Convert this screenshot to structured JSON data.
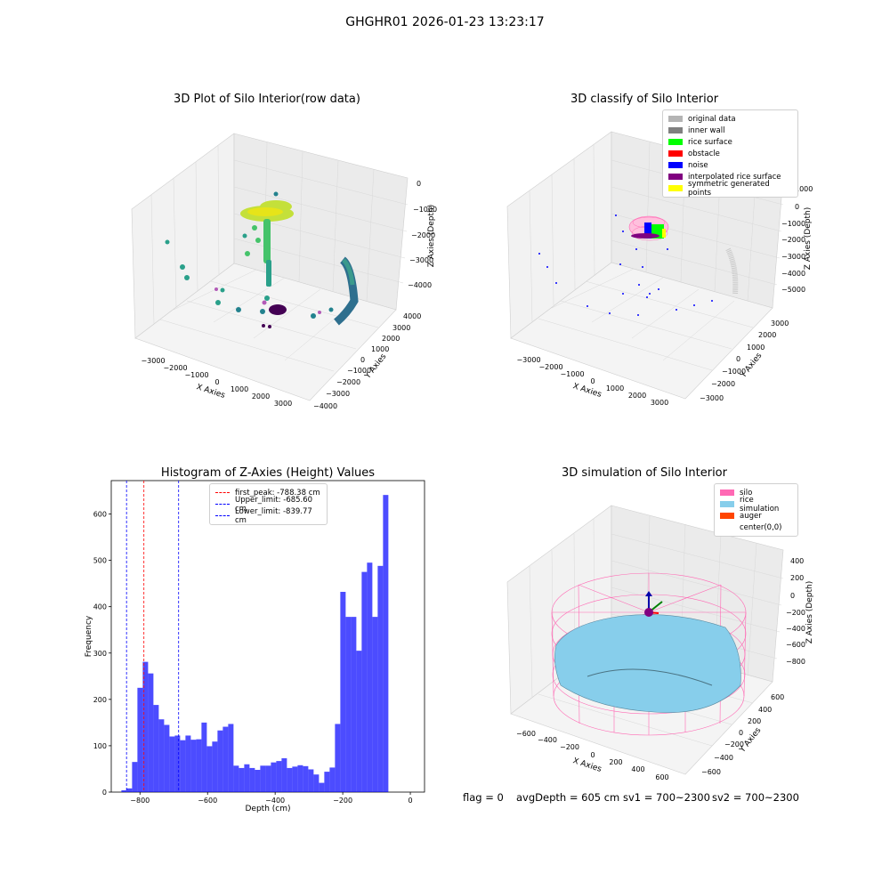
{
  "header": {
    "title": "GHGHR01 2026-01-23 13:23:17"
  },
  "plots": {
    "raw": {
      "title": "3D Plot of Silo Interior(row data)",
      "xlabel": "X Axies",
      "ylabel": "Y Axies",
      "zlabel": "Z Axies (Depth)",
      "xticks": [
        "−3000",
        "−2000",
        "−1000",
        "0",
        "1000",
        "2000",
        "3000"
      ],
      "yticks": [
        "4000",
        "3000",
        "2000",
        "1000",
        "0",
        "−1000",
        "−2000",
        "−3000",
        "−4000"
      ],
      "zticks": [
        "0",
        "−1000",
        "−2000",
        "−3000",
        "−4000"
      ]
    },
    "classify": {
      "title": "3D classify of Silo Interior",
      "xlabel": "X Axies",
      "ylabel": "Y Axies",
      "zlabel": "Z Axies (Depth)",
      "xticks": [
        "−3000",
        "−2000",
        "−1000",
        "0",
        "1000",
        "2000",
        "3000"
      ],
      "yticks": [
        "3000",
        "2000",
        "1000",
        "0",
        "−1000",
        "−2000",
        "−3000"
      ],
      "zticks": [
        "1000",
        "0",
        "−1000",
        "−2000",
        "−3000",
        "−4000",
        "−5000"
      ],
      "legend": [
        {
          "label": "original data",
          "color": "#b4b4b4"
        },
        {
          "label": "inner wall",
          "color": "#808080"
        },
        {
          "label": "rice surface",
          "color": "#00ff00"
        },
        {
          "label": "obstacle",
          "color": "#ff0000"
        },
        {
          "label": "noise",
          "color": "#0000ff"
        },
        {
          "label": "interpolated rice surface",
          "color": "#800080"
        },
        {
          "label": "symmetric generated points",
          "color": "#ffff00"
        }
      ]
    },
    "simulation": {
      "title": "3D simulation of Silo Interior",
      "xlabel": "X Axies",
      "ylabel": "Y Axies",
      "zlabel": "Z Axies (Depth)",
      "xticks": [
        "−600",
        "−400",
        "−200",
        "0",
        "200",
        "400",
        "600"
      ],
      "yticks": [
        "600",
        "400",
        "200",
        "0",
        "−200",
        "−400",
        "−600"
      ],
      "zticks": [
        "400",
        "200",
        "0",
        "−200",
        "−400",
        "−600",
        "−800"
      ],
      "legend": [
        {
          "label": "silo",
          "color": "#ff69b4"
        },
        {
          "label": "rice simulation",
          "color": "#87ceeb"
        },
        {
          "label": "auger",
          "color": "#ff4500"
        },
        {
          "label": "center(0,0)",
          "color": "#ffffff"
        }
      ]
    }
  },
  "chart_data": [
    {
      "type": "bar",
      "title": "Histogram of Z-Axies (Height) Values",
      "xlabel": "Depth (cm)",
      "ylabel": "Frequency",
      "xlim": [
        -885,
        42
      ],
      "ylim": [
        0,
        672
      ],
      "xticks": [
        -800,
        -600,
        -400,
        -200,
        0
      ],
      "yticks": [
        0,
        100,
        200,
        300,
        400,
        500,
        600
      ],
      "bin_start": -855,
      "bin_width": 15.8,
      "values": [
        4,
        8,
        65,
        225,
        281,
        256,
        188,
        157,
        145,
        120,
        122,
        112,
        122,
        113,
        114,
        150,
        99,
        109,
        133,
        141,
        147,
        57,
        52,
        60,
        52,
        48,
        57,
        57,
        64,
        67,
        73,
        52,
        55,
        58,
        56,
        49,
        38,
        20,
        44,
        53,
        147,
        432,
        378,
        378,
        305,
        475,
        495,
        378,
        488,
        641
      ],
      "bar_color": "#0000ff",
      "legend": [
        {
          "label": "first_peak: -788.38 cm",
          "value": -788.38,
          "color": "#ff0000"
        },
        {
          "label": "Upper_limit: -685.60 cm",
          "value": -685.6,
          "color": "#0000ff"
        },
        {
          "label": "Lower_limit: -839.77 cm",
          "value": -839.77,
          "color": "#0000ff"
        }
      ]
    }
  ],
  "status": {
    "flag": "flag = 0",
    "avg": "avgDepth = 605 cm",
    "sv1": "sv1 = 700~2300",
    "sv2": "sv2 = 700~2300"
  }
}
